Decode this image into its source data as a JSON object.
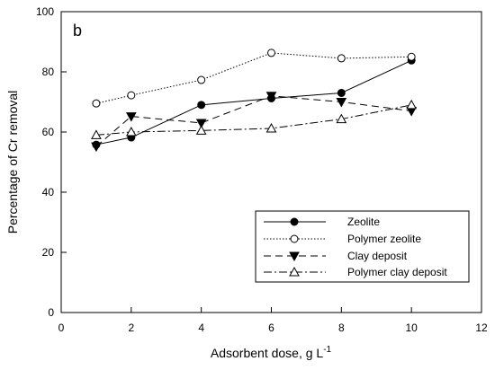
{
  "chart_data": {
    "type": "line",
    "panel_label": "b",
    "xlabel": "Adsorbent dose, g L",
    "xlabel_superscript": "-1",
    "ylabel": "Percentage of Cr removal",
    "xlim": [
      0,
      12
    ],
    "ylim": [
      0,
      100
    ],
    "xticks": [
      0,
      2,
      4,
      6,
      8,
      10,
      12
    ],
    "yticks": [
      0,
      20,
      40,
      60,
      80,
      100
    ],
    "grid": false,
    "legend_position": "bottom-right",
    "series": [
      {
        "name": "Zeolite",
        "marker": "filled-circle",
        "line": "solid",
        "x": [
          1,
          2,
          4,
          6,
          8,
          10
        ],
        "y": [
          55.8,
          58.2,
          69.0,
          71.2,
          73.0,
          83.8
        ]
      },
      {
        "name": "Polymer zeolite",
        "marker": "open-circle",
        "line": "dotted",
        "x": [
          1,
          2,
          4,
          6,
          8,
          10
        ],
        "y": [
          69.5,
          72.2,
          77.3,
          86.3,
          84.5,
          85.0
        ]
      },
      {
        "name": "Clay deposit",
        "marker": "filled-triangle-down",
        "line": "dashed",
        "x": [
          1,
          2,
          4,
          6,
          8,
          10
        ],
        "y": [
          55.2,
          65.2,
          63.0,
          72.0,
          70.0,
          67.0
        ]
      },
      {
        "name": "Polymer clay deposit",
        "marker": "open-triangle-up",
        "line": "dashdot",
        "x": [
          1,
          2,
          4,
          6,
          8,
          10
        ],
        "y": [
          59.0,
          60.0,
          60.5,
          61.2,
          64.3,
          69.0
        ]
      }
    ]
  }
}
